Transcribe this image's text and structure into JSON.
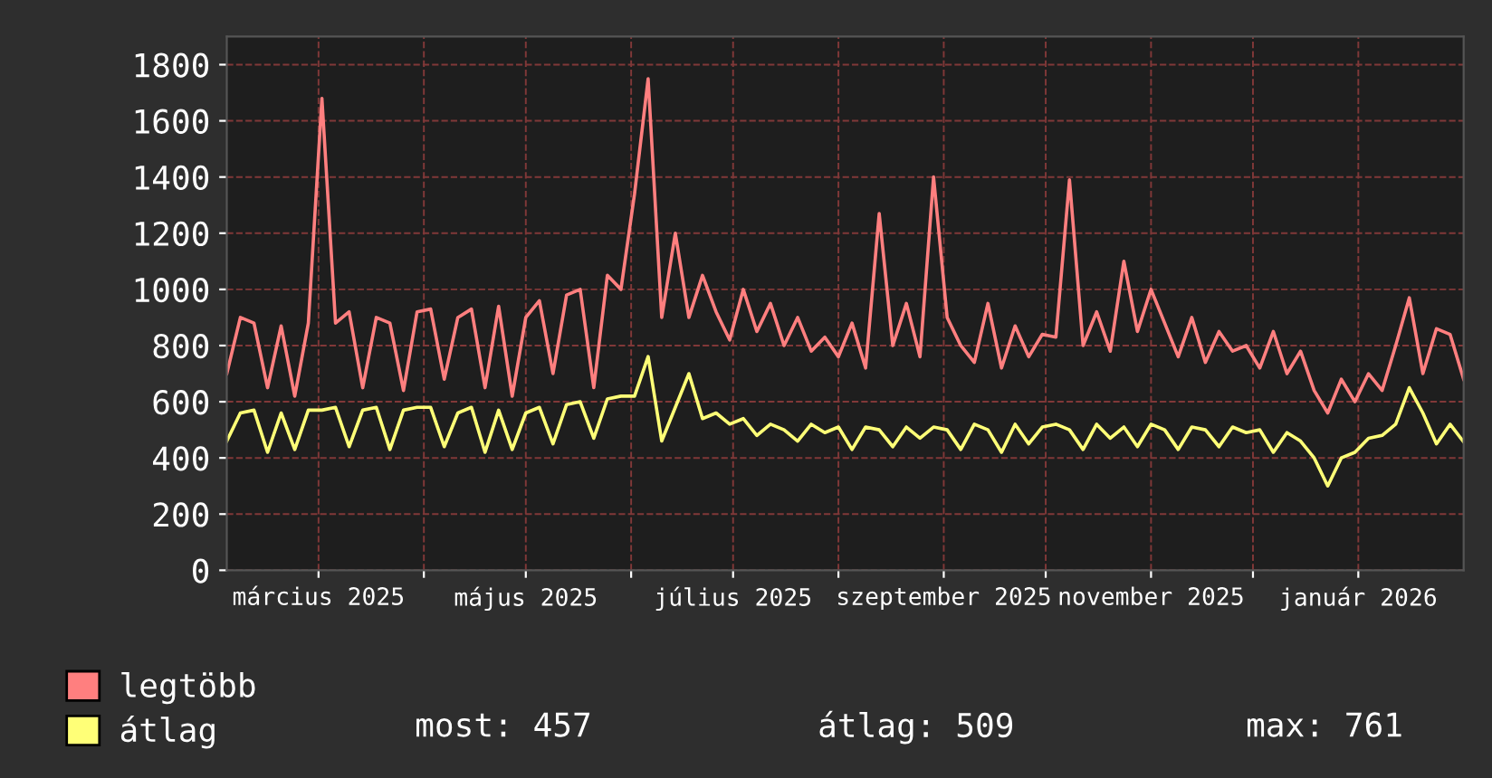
{
  "chart_data": {
    "type": "line",
    "x": [
      "2025-02-02",
      "2025-02-06",
      "2025-02-10",
      "2025-02-14",
      "2025-02-18",
      "2025-02-22",
      "2025-02-26",
      "2025-03-02",
      "2025-03-06",
      "2025-03-10",
      "2025-03-14",
      "2025-03-18",
      "2025-03-22",
      "2025-03-26",
      "2025-03-30",
      "2025-04-03",
      "2025-04-07",
      "2025-04-11",
      "2025-04-15",
      "2025-04-19",
      "2025-04-23",
      "2025-04-27",
      "2025-05-01",
      "2025-05-05",
      "2025-05-09",
      "2025-05-13",
      "2025-05-17",
      "2025-05-21",
      "2025-05-25",
      "2025-05-29",
      "2025-06-02",
      "2025-06-06",
      "2025-06-10",
      "2025-06-14",
      "2025-06-18",
      "2025-06-22",
      "2025-06-26",
      "2025-06-30",
      "2025-07-04",
      "2025-07-08",
      "2025-07-12",
      "2025-07-16",
      "2025-07-20",
      "2025-07-24",
      "2025-07-28",
      "2025-08-01",
      "2025-08-05",
      "2025-08-09",
      "2025-08-13",
      "2025-08-17",
      "2025-08-21",
      "2025-08-25",
      "2025-08-29",
      "2025-09-02",
      "2025-09-06",
      "2025-09-10",
      "2025-09-14",
      "2025-09-18",
      "2025-09-22",
      "2025-09-26",
      "2025-09-30",
      "2025-10-04",
      "2025-10-08",
      "2025-10-12",
      "2025-10-16",
      "2025-10-20",
      "2025-10-24",
      "2025-10-28",
      "2025-11-01",
      "2025-11-05",
      "2025-11-09",
      "2025-11-13",
      "2025-11-17",
      "2025-11-21",
      "2025-11-25",
      "2025-11-29",
      "2025-12-03",
      "2025-12-07",
      "2025-12-11",
      "2025-12-15",
      "2025-12-19",
      "2025-12-23",
      "2025-12-27",
      "2025-12-31",
      "2026-01-04",
      "2026-01-08",
      "2026-01-12",
      "2026-01-16",
      "2026-01-20",
      "2026-01-24",
      "2026-01-28",
      "2026-02-01"
    ],
    "series": [
      {
        "name": "legtöbb",
        "color": "#ff7f7f",
        "values": [
          700,
          900,
          880,
          650,
          870,
          620,
          880,
          1680,
          880,
          920,
          650,
          900,
          880,
          640,
          920,
          930,
          680,
          900,
          930,
          650,
          940,
          620,
          900,
          960,
          700,
          980,
          1000,
          650,
          1050,
          1000,
          1340,
          1750,
          900,
          1200,
          900,
          1050,
          920,
          820,
          1000,
          850,
          950,
          800,
          900,
          780,
          830,
          760,
          880,
          720,
          1270,
          800,
          950,
          760,
          1400,
          900,
          800,
          740,
          950,
          720,
          870,
          760,
          840,
          830,
          1390,
          800,
          920,
          780,
          1100,
          850,
          1000,
          880,
          760,
          900,
          740,
          850,
          780,
          800,
          720,
          850,
          700,
          780,
          640,
          560,
          680,
          600,
          700,
          640,
          800,
          970,
          700,
          860,
          840,
          680
        ]
      },
      {
        "name": "átlag",
        "color": "#ffff77",
        "values": [
          460,
          560,
          570,
          420,
          560,
          430,
          570,
          570,
          580,
          440,
          570,
          580,
          430,
          570,
          580,
          580,
          440,
          560,
          580,
          420,
          570,
          430,
          560,
          580,
          450,
          590,
          600,
          470,
          610,
          620,
          620,
          761,
          460,
          580,
          700,
          540,
          560,
          520,
          540,
          480,
          520,
          500,
          460,
          520,
          490,
          510,
          430,
          510,
          500,
          440,
          510,
          470,
          510,
          500,
          430,
          520,
          500,
          420,
          520,
          450,
          510,
          520,
          500,
          430,
          520,
          470,
          510,
          440,
          520,
          500,
          430,
          510,
          500,
          440,
          510,
          490,
          500,
          420,
          490,
          460,
          400,
          300,
          400,
          420,
          470,
          480,
          520,
          650,
          560,
          450,
          520,
          457
        ]
      }
    ],
    "xlim": [
      "2025-02-02",
      "2026-02-01"
    ],
    "xticks": [
      {
        "value": "2025-03-01",
        "label": "március 2025"
      },
      {
        "value": "2025-04-01",
        "label": null
      },
      {
        "value": "2025-05-01",
        "label": "május 2025"
      },
      {
        "value": "2025-06-01",
        "label": null
      },
      {
        "value": "2025-07-01",
        "label": "július 2025"
      },
      {
        "value": "2025-08-01",
        "label": null
      },
      {
        "value": "2025-09-01",
        "label": "szeptember 2025"
      },
      {
        "value": "2025-10-01",
        "label": null
      },
      {
        "value": "2025-11-01",
        "label": "november 2025"
      },
      {
        "value": "2025-12-01",
        "label": null
      },
      {
        "value": "2026-01-01",
        "label": "január 2026"
      }
    ],
    "ylim": [
      0,
      1900
    ],
    "yticks": [
      0,
      200,
      400,
      600,
      800,
      1000,
      1200,
      1400,
      1600,
      1800
    ],
    "grid": true,
    "legend": "bottom",
    "line_style": "solid",
    "annotations": [
      "most: 457",
      "átlag: 509",
      "max: 761"
    ]
  }
}
